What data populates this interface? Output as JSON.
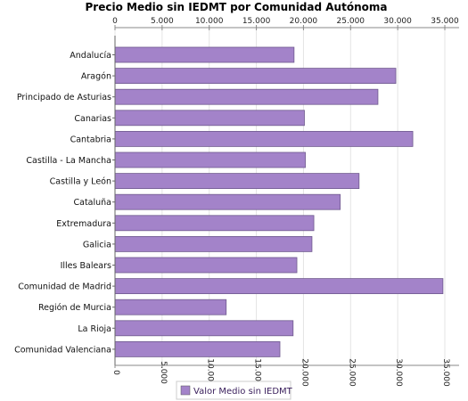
{
  "chart_data": {
    "type": "bar",
    "orientation": "horizontal",
    "title": "Precio Medio sin IEDMT por Comunidad Autónoma",
    "xlabel": "",
    "ylabel": "",
    "xlim": [
      0,
      36000
    ],
    "ticks": [
      0,
      5000,
      10000,
      15000,
      20000,
      25000,
      30000,
      35000
    ],
    "tick_labels": [
      "0",
      "5.000",
      "10.000",
      "15.000",
      "20.000",
      "25.000",
      "30.000",
      "35.000"
    ],
    "grid": true,
    "legend_position": "bottom-center",
    "categories": [
      "Andalucía",
      "Aragón",
      "Principado de Asturias",
      "Canarias",
      "Cantabria",
      "Castilla - La Mancha",
      "Castilla y León",
      "Cataluña",
      "Extremadura",
      "Galicia",
      "Illes Balears",
      "Comunidad de Madrid",
      "Región de Murcia",
      "La Rioja",
      "Comunidad Valenciana"
    ],
    "series": [
      {
        "name": "Valor Medio sin IEDMT",
        "color": "#a383c9",
        "values": [
          19000,
          29800,
          27900,
          20100,
          31600,
          20200,
          25900,
          23900,
          21100,
          20900,
          19300,
          34800,
          11800,
          18900,
          17500
        ]
      }
    ]
  }
}
